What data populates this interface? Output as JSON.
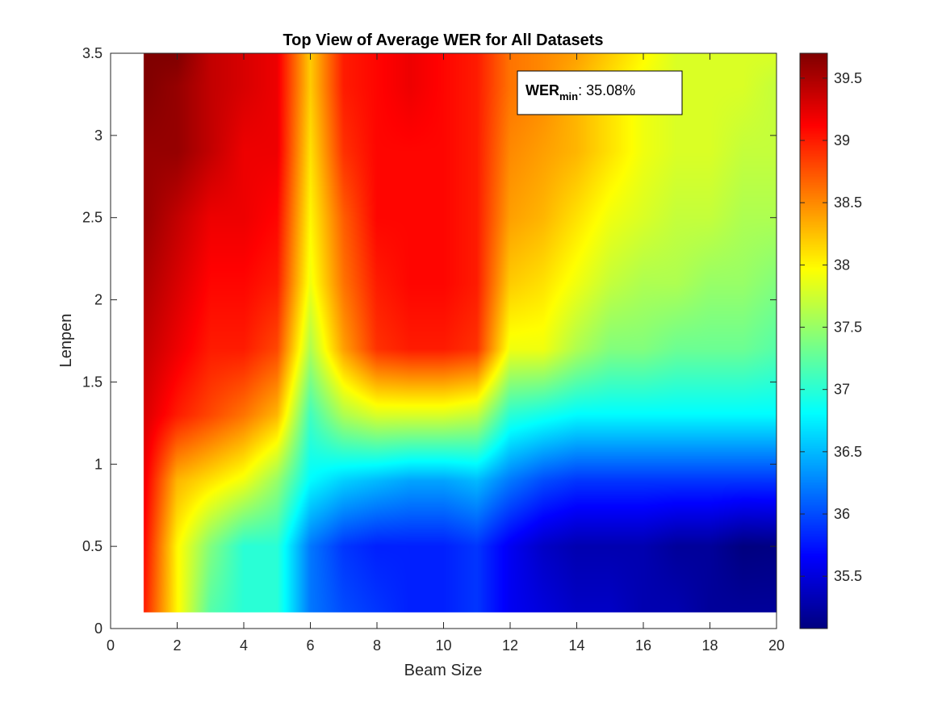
{
  "chart_data": {
    "type": "heatmap",
    "title": "Top View of Average WER for All Datasets",
    "xlabel": "Beam Size",
    "ylabel": "Lenpen",
    "xlim": [
      0,
      20
    ],
    "ylim": [
      0,
      3.5
    ],
    "x_ticks": [
      "0",
      "2",
      "4",
      "6",
      "8",
      "10",
      "12",
      "14",
      "16",
      "18",
      "20"
    ],
    "y_ticks": [
      "0",
      "0.5",
      "1",
      "1.5",
      "2",
      "2.5",
      "3",
      "3.5"
    ],
    "colorbar": {
      "colormap": "jet",
      "range": [
        35.08,
        39.7
      ],
      "ticks": [
        "35.5",
        "36",
        "36.5",
        "37",
        "37.5",
        "38",
        "38.5",
        "39",
        "39.5"
      ]
    },
    "annotation": {
      "label_main": "WER",
      "label_sub": "min",
      "value": ": 35.08%"
    },
    "x": [
      1,
      2,
      3,
      4,
      5,
      6,
      7,
      8,
      9,
      10,
      11,
      12,
      13,
      14,
      15,
      16,
      17,
      18,
      19,
      20
    ],
    "y": [
      0.1,
      0.5,
      0.9,
      1.3,
      1.7,
      2.1,
      2.5,
      2.9,
      3.3,
      3.5
    ],
    "z": [
      [
        39.0,
        38.0,
        37.2,
        37.0,
        37.0,
        36.2,
        36.0,
        35.9,
        35.8,
        35.8,
        35.9,
        35.6,
        35.5,
        35.4,
        35.4,
        35.3,
        35.3,
        35.2,
        35.2,
        35.2
      ],
      [
        39.1,
        38.0,
        37.4,
        37.0,
        37.0,
        36.2,
        35.9,
        35.8,
        35.8,
        35.8,
        35.9,
        35.6,
        35.4,
        35.3,
        35.3,
        35.3,
        35.2,
        35.2,
        35.08,
        35.1
      ],
      [
        39.2,
        38.3,
        38.1,
        37.9,
        37.5,
        36.8,
        36.6,
        36.5,
        36.4,
        36.4,
        36.5,
        36.2,
        36.0,
        35.9,
        35.9,
        35.9,
        35.9,
        35.9,
        35.9,
        35.9
      ],
      [
        39.3,
        39.0,
        38.8,
        38.6,
        38.3,
        37.1,
        37.6,
        37.8,
        37.8,
        37.8,
        37.7,
        37.0,
        36.9,
        36.8,
        36.8,
        36.8,
        36.8,
        36.8,
        36.8,
        36.8
      ],
      [
        39.4,
        39.2,
        39.0,
        39.0,
        38.8,
        37.6,
        38.4,
        38.9,
        39.0,
        39.0,
        38.9,
        37.9,
        37.9,
        37.6,
        37.4,
        37.4,
        37.3,
        37.3,
        37.3,
        37.2
      ],
      [
        39.5,
        39.3,
        39.1,
        39.1,
        39.0,
        37.9,
        38.6,
        39.0,
        39.1,
        39.1,
        39.0,
        38.2,
        38.1,
        37.9,
        37.7,
        37.6,
        37.6,
        37.5,
        37.5,
        37.4
      ],
      [
        39.6,
        39.4,
        39.2,
        39.2,
        39.1,
        38.0,
        38.7,
        39.1,
        39.1,
        39.1,
        39.0,
        38.4,
        38.3,
        38.1,
        37.9,
        37.8,
        37.7,
        37.7,
        37.6,
        37.6
      ],
      [
        39.6,
        39.6,
        39.4,
        39.2,
        39.2,
        38.1,
        38.9,
        39.1,
        39.1,
        39.1,
        39.0,
        38.5,
        38.4,
        38.3,
        38.1,
        37.9,
        37.8,
        37.8,
        37.7,
        37.7
      ],
      [
        39.7,
        39.6,
        39.4,
        39.3,
        39.2,
        38.2,
        39.0,
        39.1,
        39.2,
        39.1,
        39.0,
        38.6,
        38.5,
        38.3,
        38.1,
        37.9,
        37.8,
        37.8,
        37.8,
        37.7
      ],
      [
        39.7,
        39.7,
        39.4,
        39.3,
        39.2,
        38.2,
        39.0,
        39.1,
        39.2,
        39.1,
        39.0,
        38.6,
        38.5,
        38.4,
        38.2,
        38.0,
        37.8,
        37.8,
        37.8,
        37.8
      ]
    ]
  }
}
